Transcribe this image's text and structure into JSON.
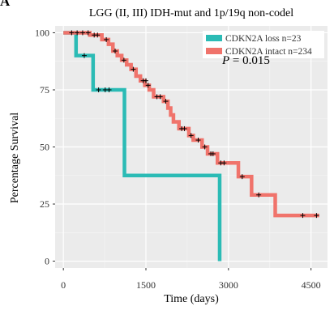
{
  "panel_letter": "A",
  "chart_data": {
    "type": "line",
    "subtype": "kaplan-meier",
    "title": "LGG (II, III) IDH-mut and 1p/19q non-codel",
    "xlabel": "Time (days)",
    "ylabel": "Percentage Survival",
    "xlim": [
      -150,
      4800
    ],
    "ylim": [
      -3,
      103
    ],
    "xticks": [
      0,
      1500,
      3000,
      4500
    ],
    "yticks": [
      0,
      25,
      50,
      75,
      100
    ],
    "grid": true,
    "background_color": "#ebebeb",
    "legend_position": "top-right",
    "pvalue_label": "P",
    "pvalue_text": " = 0.015",
    "series": [
      {
        "name": "CDKN2A loss n=23",
        "color": "#2bbbb5",
        "steps": [
          [
            0,
            100
          ],
          [
            230,
            90
          ],
          [
            540,
            75
          ],
          [
            1110,
            37.5
          ],
          [
            2840,
            0
          ]
        ],
        "end_x": 2840,
        "censor": [
          [
            380,
            90
          ],
          [
            640,
            75
          ],
          [
            760,
            75
          ],
          [
            830,
            75
          ]
        ]
      },
      {
        "name": "CDKN2A intact n=234",
        "color": "#f0736b",
        "steps": [
          [
            0,
            100
          ],
          [
            480,
            99
          ],
          [
            700,
            97
          ],
          [
            820,
            95
          ],
          [
            900,
            92
          ],
          [
            980,
            90
          ],
          [
            1060,
            88
          ],
          [
            1150,
            86
          ],
          [
            1230,
            84
          ],
          [
            1320,
            81
          ],
          [
            1400,
            79
          ],
          [
            1480,
            77
          ],
          [
            1560,
            75
          ],
          [
            1640,
            72
          ],
          [
            1820,
            70
          ],
          [
            1900,
            67
          ],
          [
            1950,
            64
          ],
          [
            2000,
            61
          ],
          [
            2100,
            58
          ],
          [
            2280,
            55
          ],
          [
            2360,
            53
          ],
          [
            2520,
            50
          ],
          [
            2620,
            47
          ],
          [
            2800,
            43
          ],
          [
            3180,
            37
          ],
          [
            3420,
            29
          ],
          [
            3850,
            20
          ],
          [
            4650,
            20
          ]
        ],
        "end_x": 4650,
        "censor": [
          [
            150,
            100
          ],
          [
            250,
            100
          ],
          [
            350,
            100
          ],
          [
            450,
            100
          ],
          [
            560,
            99
          ],
          [
            620,
            99
          ],
          [
            780,
            97
          ],
          [
            940,
            92
          ],
          [
            1100,
            88
          ],
          [
            1270,
            84
          ],
          [
            1450,
            79
          ],
          [
            1500,
            79
          ],
          [
            1540,
            77
          ],
          [
            1700,
            72
          ],
          [
            1760,
            72
          ],
          [
            1860,
            70
          ],
          [
            2150,
            58
          ],
          [
            2200,
            58
          ],
          [
            2320,
            55
          ],
          [
            2450,
            53
          ],
          [
            2570,
            50
          ],
          [
            2680,
            47
          ],
          [
            2720,
            47
          ],
          [
            2860,
            43
          ],
          [
            2920,
            43
          ],
          [
            3250,
            37
          ],
          [
            3550,
            29
          ],
          [
            4350,
            20
          ],
          [
            4600,
            20
          ]
        ]
      }
    ]
  }
}
